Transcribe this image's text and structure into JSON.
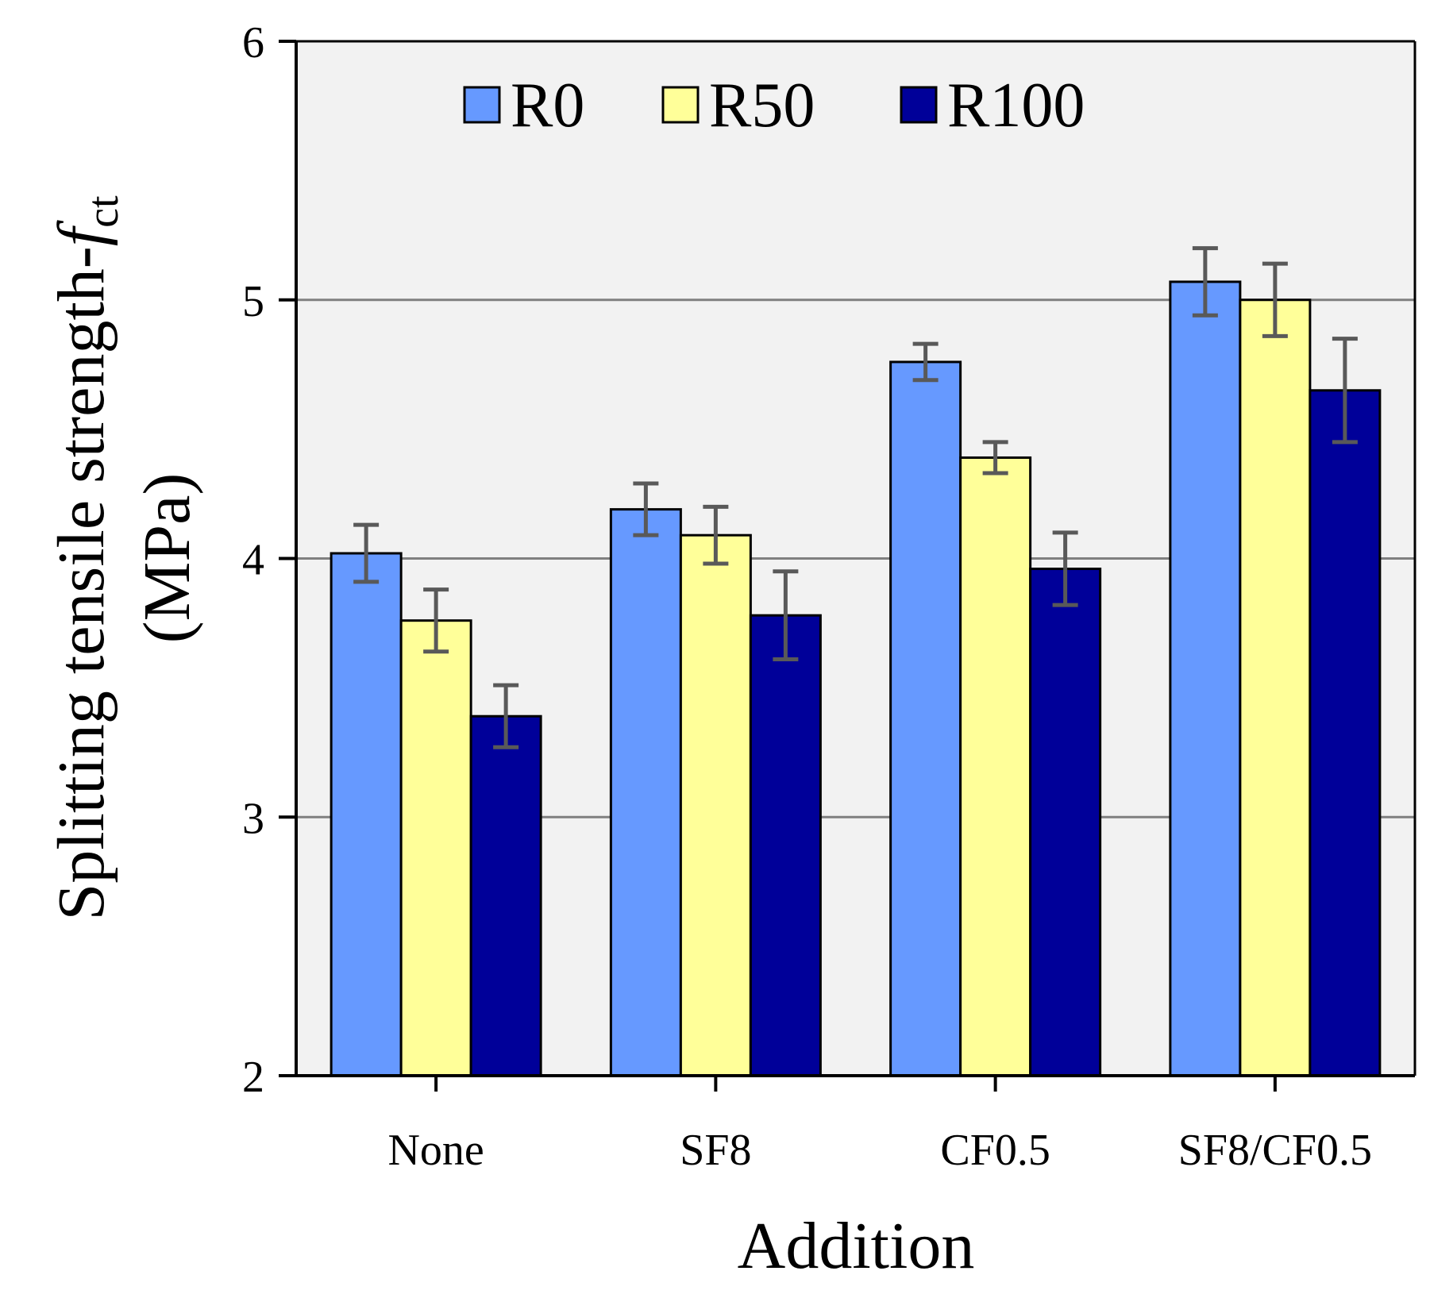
{
  "chart_data": {
    "type": "bar",
    "title": "",
    "xlabel": "Addition",
    "ylabel": {
      "line1_prefix": "Splitting tensile strength-",
      "symbol": "f",
      "subscript": "ct",
      "line2": "(MPa)"
    },
    "categories": [
      "None",
      "SF8",
      "CF0.5",
      "SF8/CF0.5"
    ],
    "ylim": [
      2,
      6
    ],
    "yticks": [
      "2",
      "3",
      "4",
      "5",
      "6"
    ],
    "ytick_values": [
      2,
      3,
      4,
      5,
      6
    ],
    "gridlines": [
      3,
      4,
      5
    ],
    "legend_position": "top",
    "series": [
      {
        "name": "R0",
        "color": "#6699FF",
        "values": [
          4.02,
          4.19,
          4.76,
          5.07
        ],
        "errors": [
          0.11,
          0.1,
          0.07,
          0.13
        ]
      },
      {
        "name": "R50",
        "color": "#FFFF99",
        "values": [
          3.76,
          4.09,
          4.39,
          5.0
        ],
        "errors": [
          0.12,
          0.11,
          0.06,
          0.14
        ]
      },
      {
        "name": "R100",
        "color": "#000099",
        "values": [
          3.39,
          3.78,
          3.96,
          4.65
        ],
        "errors": [
          0.12,
          0.17,
          0.14,
          0.2
        ]
      }
    ],
    "colors": {
      "plot_background": "#F2F2F2",
      "gridline": "#808080",
      "error_bar": "#595959",
      "bar_outline": "#000000"
    }
  }
}
